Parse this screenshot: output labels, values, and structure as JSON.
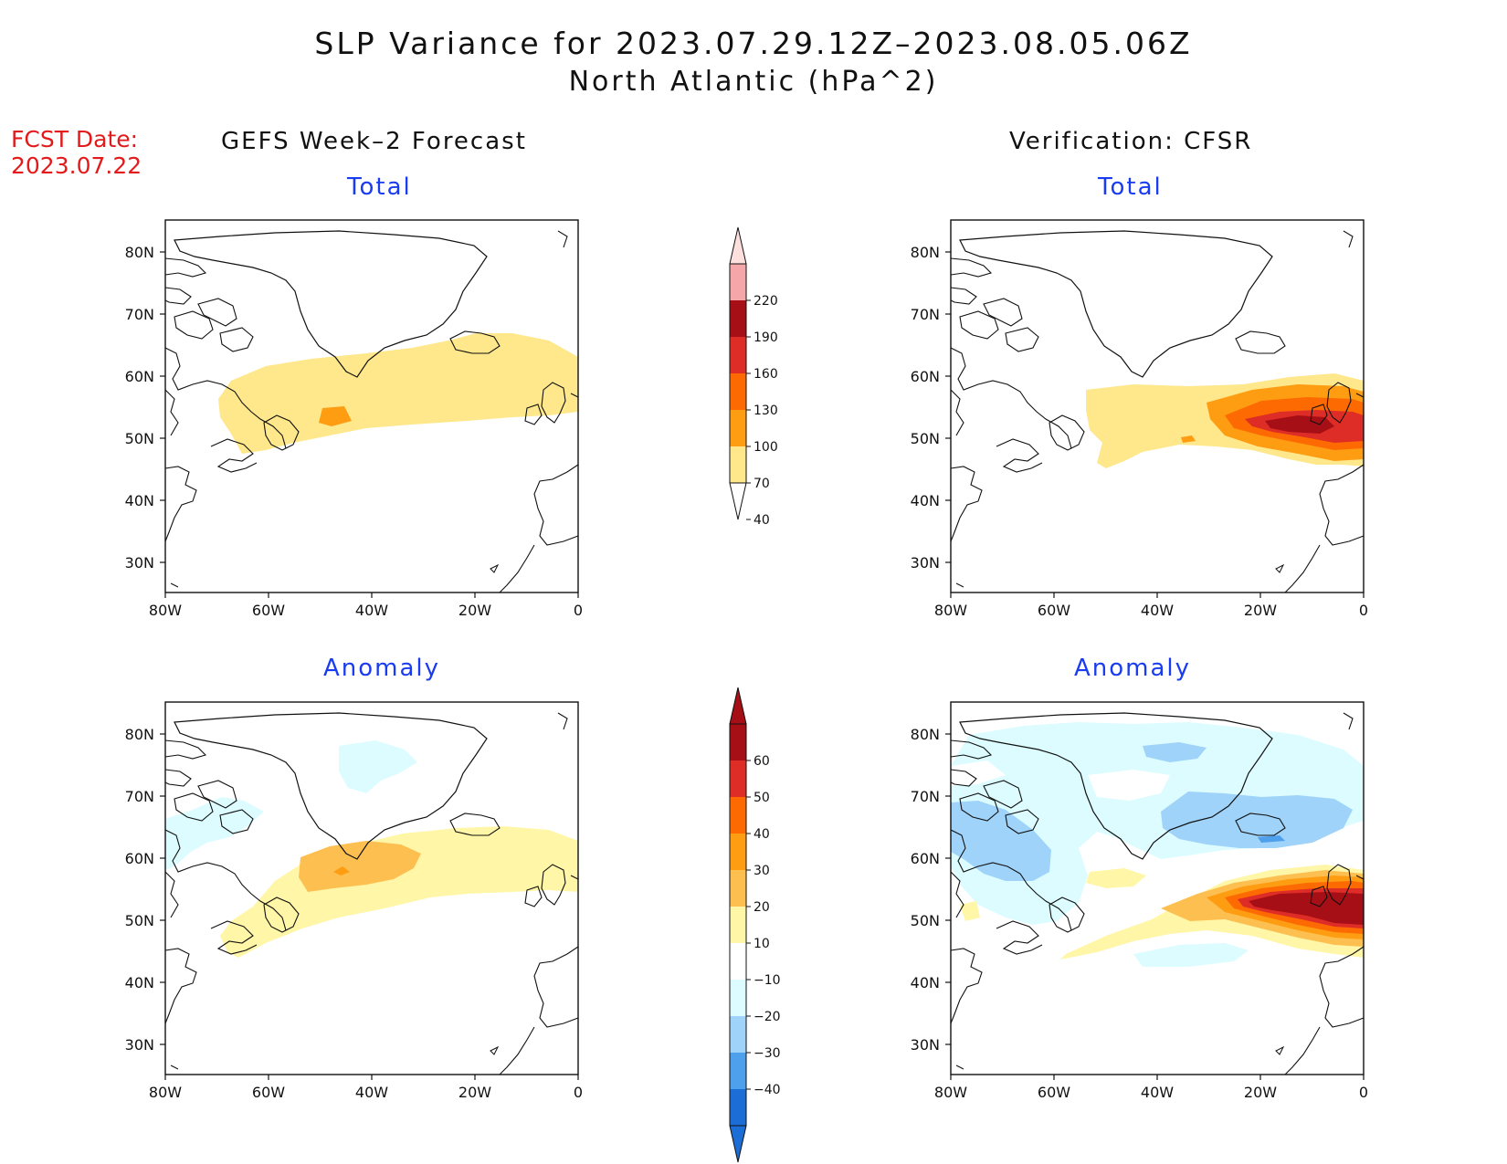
{
  "header": {
    "title": "SLP Variance for 2023.07.29.12Z–2023.08.05.06Z",
    "subtitle": "North Atlantic (hPa^2)",
    "fcst_label": "FCST Date:",
    "fcst_date": "2023.07.22"
  },
  "columns": {
    "left": "GEFS Week–2 Forecast",
    "right": "Verification: CFSR"
  },
  "panels": {
    "top_left_title": "Total",
    "top_right_title": "Total",
    "bottom_left_title": "Anomaly",
    "bottom_right_title": "Anomaly"
  },
  "axes": {
    "lon_labels": [
      "80W",
      "60W",
      "40W",
      "20W",
      "0"
    ],
    "lat_labels": [
      "80N",
      "70N",
      "60N",
      "50N",
      "40N",
      "30N"
    ]
  },
  "colorbars": {
    "total": {
      "labels": [
        "220",
        "190",
        "160",
        "130",
        "100",
        "70",
        "40"
      ],
      "colors": [
        "#fde0dd",
        "#f4a6a8",
        "#a50f15",
        "#de2d26",
        "#fd6a02",
        "#fe9c12",
        "#fee88b"
      ]
    },
    "anomaly": {
      "labels": [
        "60",
        "50",
        "40",
        "30",
        "20",
        "10",
        "−10",
        "−20",
        "−30",
        "−40"
      ],
      "colors": [
        "#a50f15",
        "#de2d26",
        "#fd6a02",
        "#fe9c12",
        "#fdbf4f",
        "#fff6a8",
        "#ffffff",
        "#dcfcff",
        "#9fd3fa",
        "#4ea0ec",
        "#1c6dd6",
        "#1c6dd6"
      ]
    }
  },
  "legend_colors": {
    "y40": "#fee88b",
    "y70": "#fe9c12",
    "o100": "#fd6a02",
    "r130": "#de2d26",
    "dr160": "#a50f15",
    "a10": "#fff6a8",
    "a20": "#fdbf4f",
    "a30": "#fe9c12",
    "a40": "#fd6a02",
    "a50": "#de2d26",
    "a60": "#a50f15",
    "n10": "#dcfcff",
    "n20": "#9fd3fa",
    "n30": "#4ea0ec"
  }
}
